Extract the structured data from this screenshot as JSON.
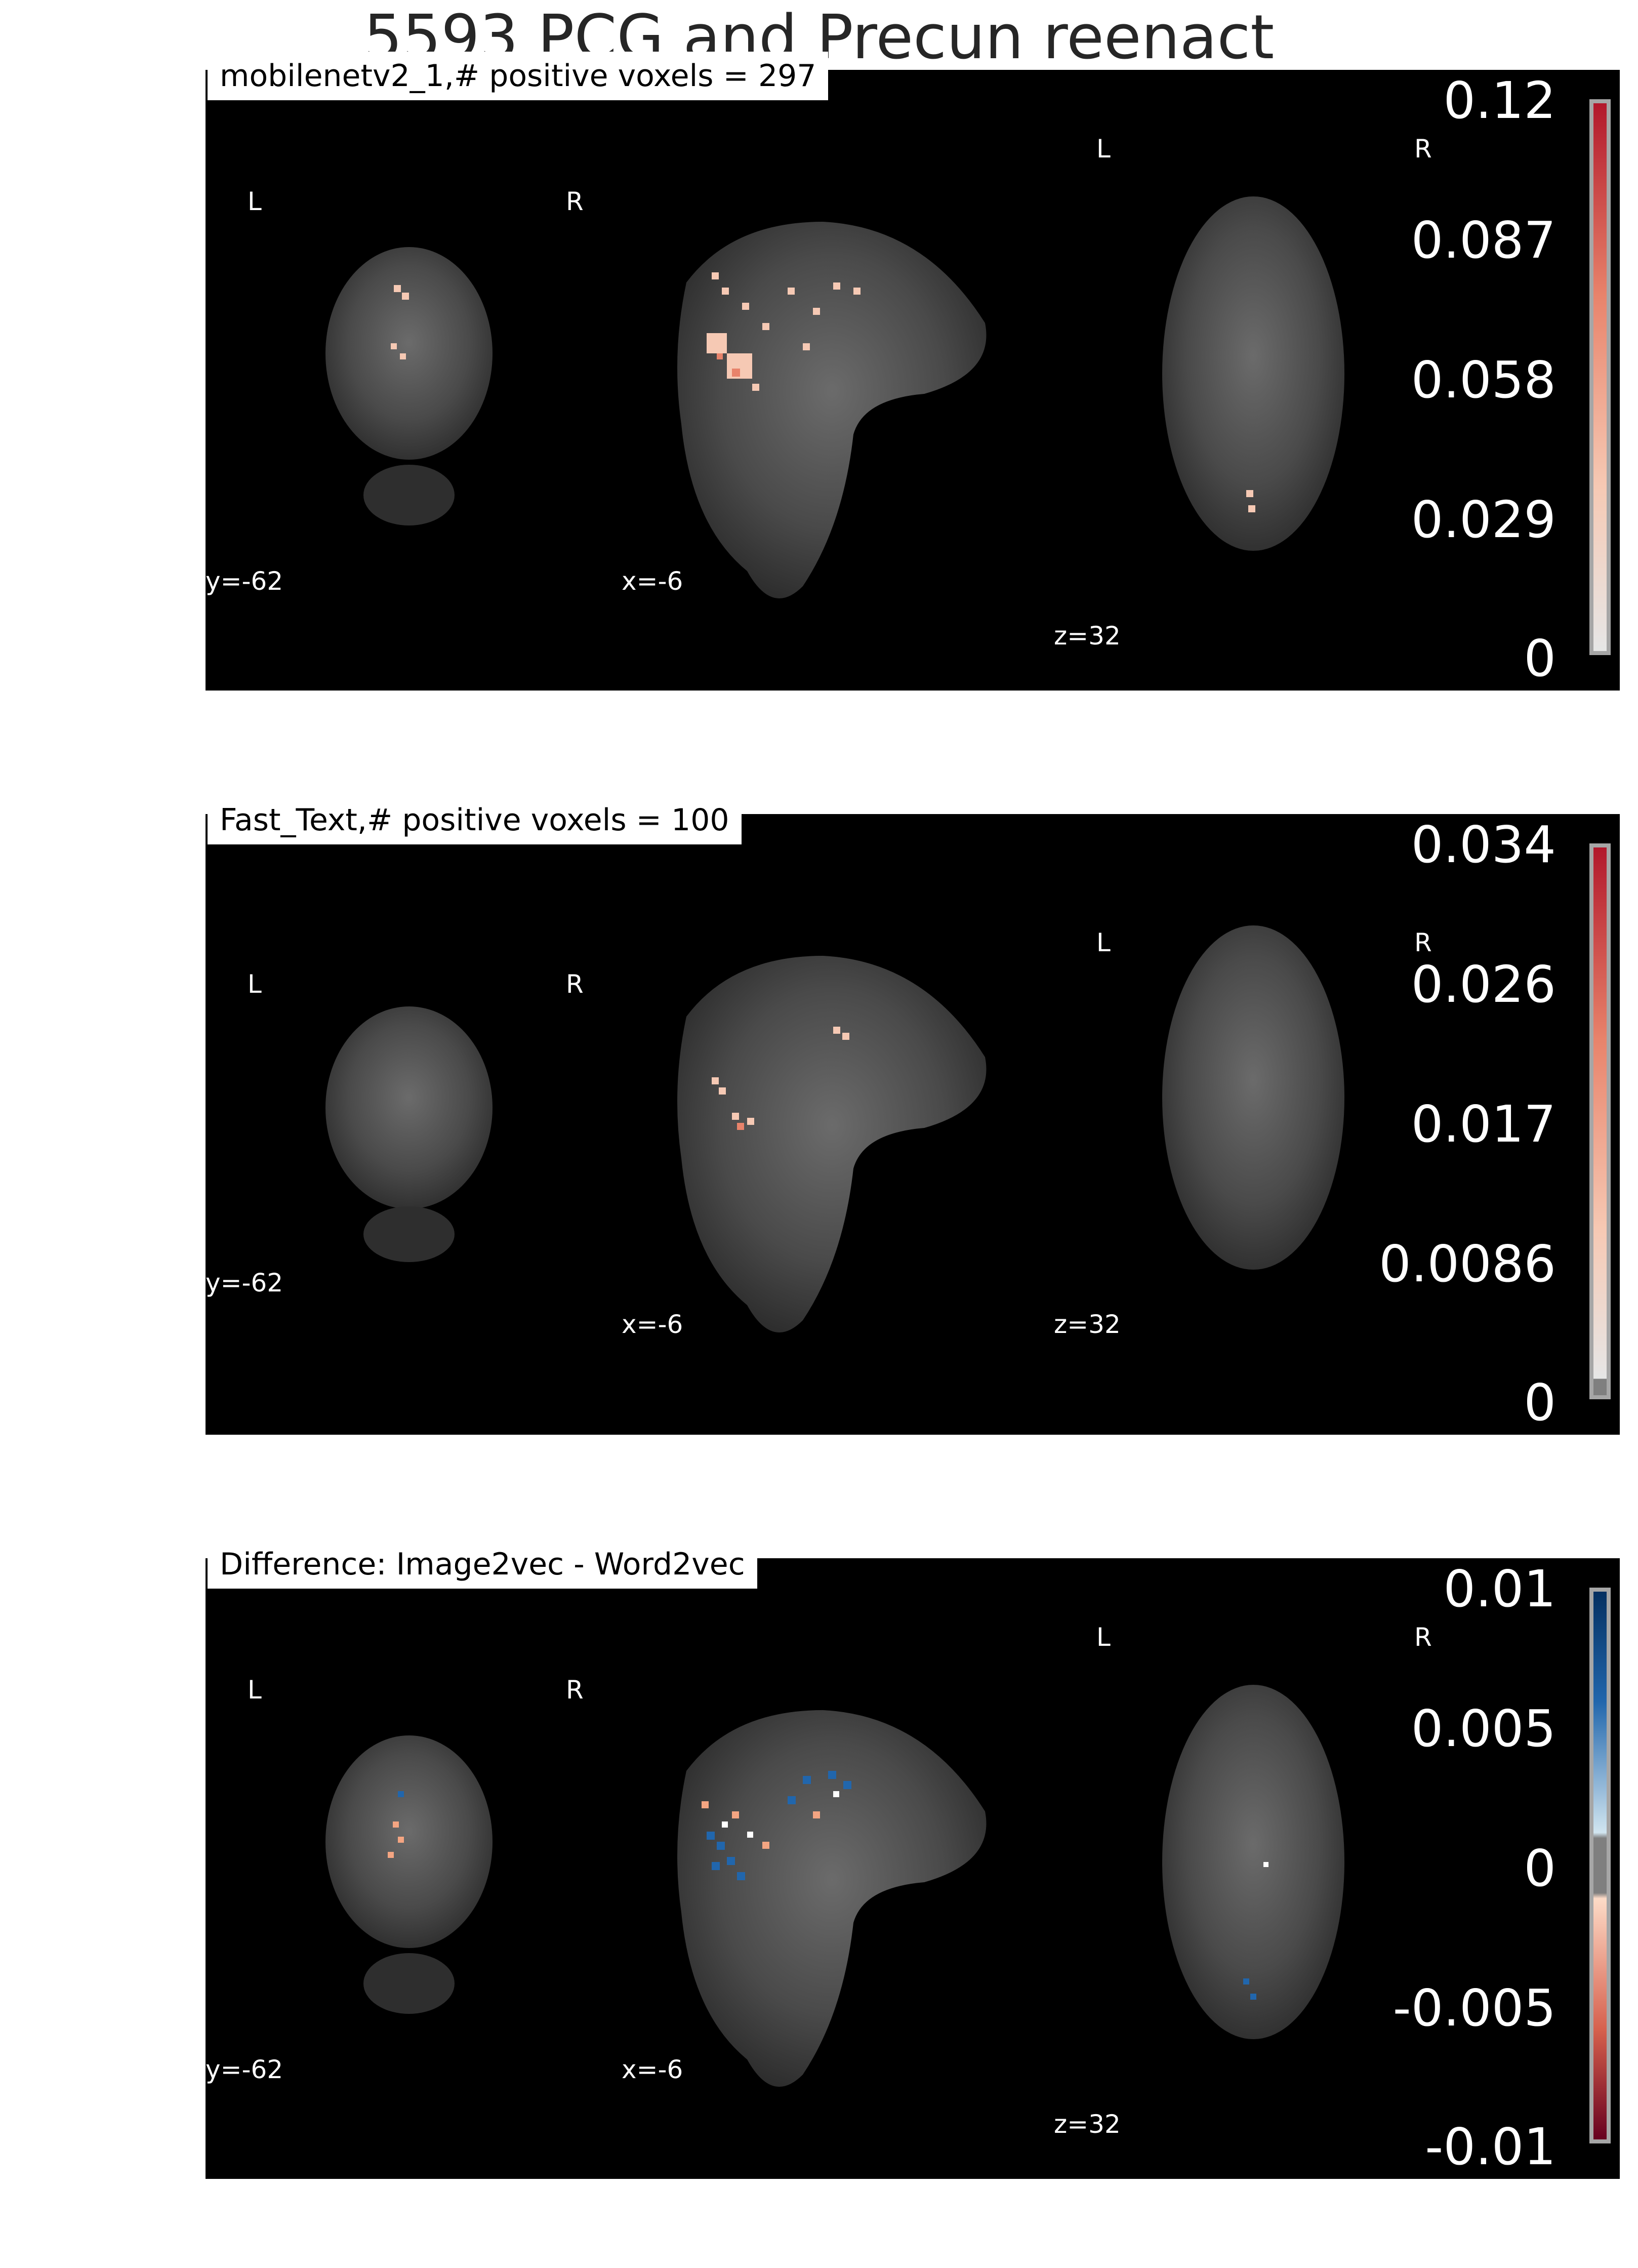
{
  "figure": {
    "title": "5593 PCG and Precun reenact"
  },
  "panels": [
    {
      "label": "mobilenetv2_1,# positive voxels = 297",
      "orientation": {
        "coronal_left": "L",
        "coronal_right": "R",
        "axial_left": "L",
        "axial_right": "R"
      },
      "cuts": {
        "y": "y=-62",
        "x": "x=-6",
        "z": "z=32"
      },
      "colorbar": {
        "ticks": [
          "0.12",
          "0.087",
          "0.058",
          "0.029",
          "0"
        ],
        "colors": [
          "#b2182b",
          "#e8836b",
          "#f6c9b4",
          "#e6e6e6"
        ]
      }
    },
    {
      "label": "Fast_Text,# positive voxels = 100",
      "orientation": {
        "coronal_left": "L",
        "coronal_right": "R",
        "axial_left": "L",
        "axial_right": "R"
      },
      "cuts": {
        "y": "y=-62",
        "x": "x=-6",
        "z": "z=32"
      },
      "colorbar": {
        "ticks": [
          "0.034",
          "0.026",
          "0.017",
          "0.0086",
          "0"
        ],
        "colors": [
          "#b2182b",
          "#e8836b",
          "#f6c9b4",
          "#e6e6e6"
        ]
      }
    },
    {
      "label": "Difference: Image2vec - Word2vec",
      "orientation": {
        "coronal_left": "L",
        "coronal_right": "R",
        "axial_left": "L",
        "axial_right": "R"
      },
      "cuts": {
        "y": "y=-62",
        "x": "x=-6",
        "z": "z=32"
      },
      "colorbar": {
        "ticks": [
          "0.01",
          "0.005",
          "0",
          "-0.005",
          "-0.01"
        ],
        "colors": [
          "#2166ac",
          "#92c5de",
          "#7f7f7f",
          "#f4a582",
          "#b2182b"
        ]
      }
    }
  ]
}
